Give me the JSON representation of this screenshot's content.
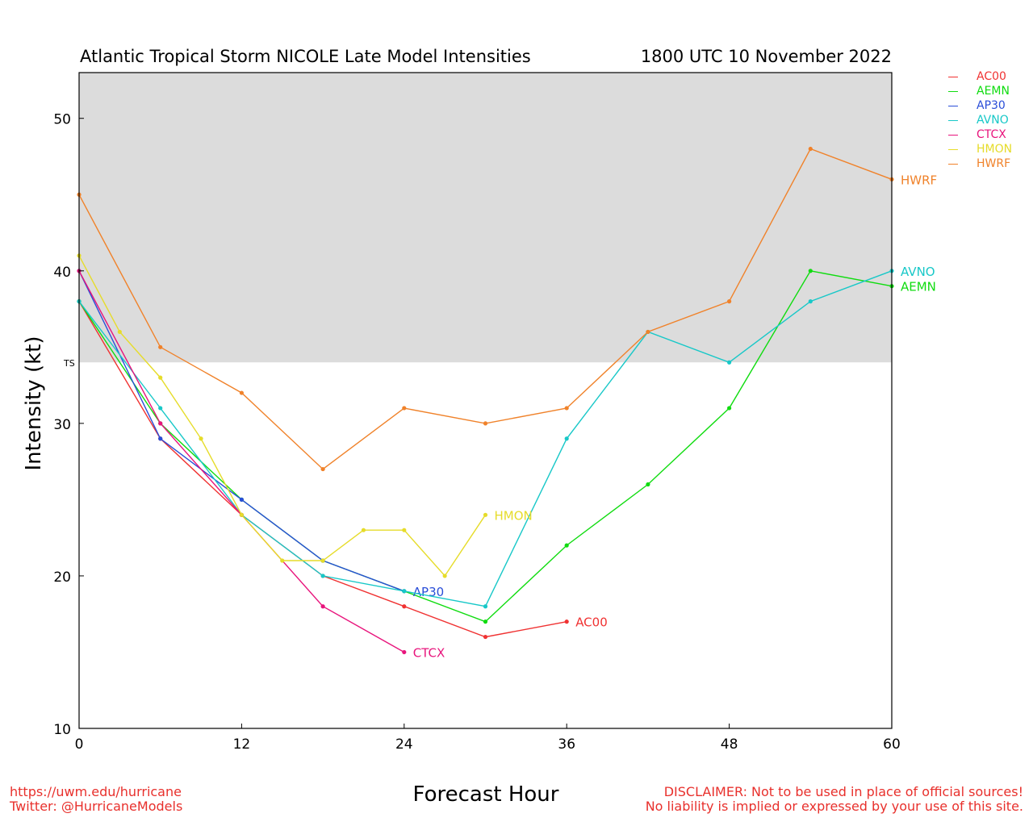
{
  "title": "Atlantic Tropical Storm NICOLE Late Model Intensities",
  "date": "1800 UTC 10 November 2022",
  "credits": {
    "url": "https://uwm.edu/hurricane",
    "twitter": "Twitter: @HurricaneModels",
    "disclaimer1": "DISCLAIMER: Not to be used in place of official sources!",
    "disclaimer2": "No liability is implied or expressed by your use of this site."
  },
  "chart_data": {
    "type": "line",
    "title": "Atlantic Tropical Storm NICOLE Late Model Intensities",
    "xlabel": "Forecast Hour",
    "ylabel": "Intensity (kt)",
    "xlim": [
      0,
      60
    ],
    "ylim": [
      10,
      53
    ],
    "xticks": [
      0,
      12,
      24,
      36,
      48,
      60
    ],
    "yticks": [
      10,
      20,
      30,
      40,
      50
    ],
    "shaded_threshold": {
      "label": "TS",
      "value": 34,
      "color": "#dcdcdc"
    },
    "legend_position": "right, outside plot",
    "series": [
      {
        "name": "AC00",
        "color": "#f03232",
        "x": [
          0,
          6,
          12,
          18,
          24,
          30,
          36
        ],
        "y": [
          38,
          29,
          24,
          20,
          18,
          16,
          17
        ],
        "end_label": true
      },
      {
        "name": "AEMN",
        "color": "#10dc10",
        "x": [
          0,
          6,
          12,
          18,
          24,
          30,
          36,
          42,
          48,
          54,
          60
        ],
        "y": [
          38,
          30,
          25,
          21,
          19,
          17,
          22,
          26,
          31,
          40,
          39
        ],
        "end_label": true
      },
      {
        "name": "AP30",
        "color": "#2a4ed8",
        "x": [
          0,
          6,
          12,
          18,
          24
        ],
        "y": [
          40,
          29,
          25,
          21,
          19
        ],
        "end_label": true
      },
      {
        "name": "AVNO",
        "color": "#18c8c8",
        "x": [
          0,
          6,
          12,
          18,
          24,
          30,
          36,
          42,
          48,
          54,
          60
        ],
        "y": [
          38,
          31,
          24,
          20,
          19,
          18,
          29,
          36,
          34,
          38,
          40
        ],
        "end_label": true
      },
      {
        "name": "CTCX",
        "color": "#e8147c",
        "x": [
          0,
          6,
          12,
          18,
          24
        ],
        "y": [
          40,
          30,
          24,
          18,
          15
        ],
        "end_label": true
      },
      {
        "name": "HMON",
        "color": "#e6dc2a",
        "x": [
          0,
          3,
          6,
          9,
          12,
          15,
          18,
          21,
          24,
          27,
          30
        ],
        "y": [
          41,
          36,
          33,
          29,
          24,
          21,
          21,
          23,
          23,
          20,
          24
        ],
        "end_label": true
      },
      {
        "name": "HWRF",
        "color": "#f0822a",
        "x": [
          0,
          6,
          12,
          18,
          24,
          30,
          36,
          42,
          48,
          54,
          60
        ],
        "y": [
          45,
          35,
          32,
          27,
          31,
          30,
          31,
          36,
          38,
          48,
          46
        ],
        "end_label": true
      }
    ]
  }
}
